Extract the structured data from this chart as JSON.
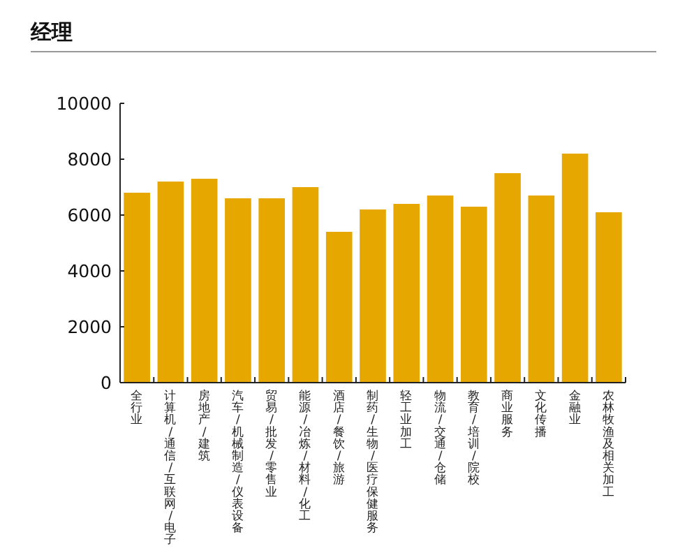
{
  "chart_data": {
    "type": "bar",
    "title": "经理",
    "categories": [
      "全行业",
      "计算机/通信/互联网/电子",
      "房地产/建筑",
      "汽车/机械制造/仪表设备",
      "贸易/批发/零售业",
      "能源/冶炼/材料/化工",
      "酒店/餐饮/旅游",
      "制药/生物/医疗保健服务",
      "轻工业加工",
      "物流/交通/仓储",
      "教育/培训/院校",
      "商业服务",
      "文化传播",
      "金融业",
      "农林牧渔及相关加工"
    ],
    "values": [
      6800,
      7200,
      7300,
      6600,
      6600,
      7000,
      5400,
      6200,
      6400,
      6700,
      6300,
      7500,
      6700,
      8200,
      6100
    ],
    "color": "#e6a800",
    "ylim": [
      0,
      10000
    ],
    "yticks": [
      0,
      2000,
      4000,
      6000,
      8000,
      10000
    ]
  }
}
